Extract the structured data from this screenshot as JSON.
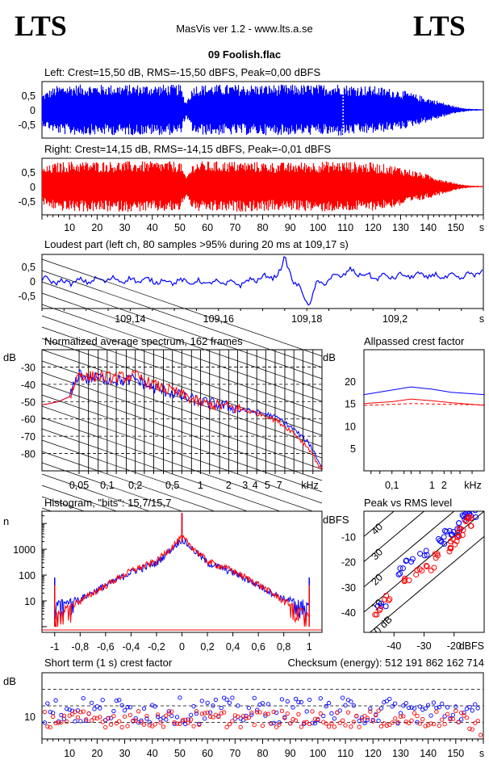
{
  "header": {
    "logo_left": "LTS",
    "logo_right": "LTS",
    "app_title": "MasVis ver 1.2 - www.lts.a.se",
    "file_title": "09 Foolish.flac"
  },
  "colors": {
    "left": "#0000ff",
    "right": "#ff0000"
  },
  "chart_data": [
    {
      "id": "left-waveform",
      "type": "area",
      "title": "Left: Crest=15,50 dB, RMS=-15,50 dBFS, Peak=0,00 dBFS",
      "yticks": [
        "0,5",
        "0",
        "-0,5"
      ],
      "ylim": [
        -1,
        1
      ],
      "xlim": [
        0,
        160
      ],
      "envelope_x": [
        0,
        5,
        10,
        20,
        30,
        40,
        50,
        52,
        55,
        70,
        90,
        100,
        109,
        110,
        120,
        130,
        140,
        150,
        155,
        160
      ],
      "envelope_y": [
        0.6,
        0.9,
        0.95,
        0.95,
        0.95,
        0.95,
        0.95,
        0.3,
        0.95,
        0.95,
        0.95,
        0.95,
        1.0,
        0.95,
        0.9,
        0.75,
        0.45,
        0.12,
        0.04,
        0.02
      ]
    },
    {
      "id": "right-waveform",
      "type": "area",
      "title": "Right: Crest=14,15 dB, RMS=-14,15 dBFS, Peak=-0,01 dBFS",
      "yticks": [
        "0,5",
        "0",
        "-0,5"
      ],
      "ylim": [
        -1,
        1
      ],
      "xlim": [
        0,
        160
      ],
      "xticks": [
        "10",
        "20",
        "30",
        "40",
        "50",
        "60",
        "70",
        "80",
        "90",
        "100",
        "110",
        "120",
        "130",
        "140",
        "150",
        "s"
      ],
      "envelope_x": [
        0,
        5,
        10,
        20,
        30,
        40,
        50,
        52,
        55,
        70,
        90,
        100,
        110,
        120,
        130,
        140,
        150,
        155,
        160
      ],
      "envelope_y": [
        0.7,
        0.9,
        0.95,
        0.95,
        0.95,
        0.95,
        0.95,
        0.35,
        0.95,
        0.95,
        0.9,
        0.95,
        0.95,
        0.9,
        0.75,
        0.45,
        0.12,
        0.04,
        0.02
      ]
    },
    {
      "id": "loudest-part",
      "type": "line",
      "title": "Loudest part (left  ch, 80 samples >95% during 20 ms at 109,17 s)",
      "yticks": [
        "0,5",
        "0",
        "-0,5"
      ],
      "ylim": [
        -1,
        1
      ],
      "xticks": [
        "109,14",
        "109,16",
        "109,18",
        "109,2",
        "s"
      ],
      "xlim": [
        109.12,
        109.22
      ]
    },
    {
      "id": "spectrum",
      "type": "line",
      "title": "Normalized average spectrum, 162 frames",
      "ylabel": "dB",
      "yticks": [
        "-30",
        "-40",
        "-50",
        "-60",
        "-70",
        "-80"
      ],
      "ylim": [
        -90,
        -20
      ],
      "xticks": [
        "0,05",
        "0,1",
        "0,2",
        "0,5",
        "1",
        "2",
        "3",
        "4",
        "5",
        "7",
        "kHz"
      ],
      "freq_khz": [
        0.02,
        0.03,
        0.04,
        0.05,
        0.06,
        0.08,
        0.1,
        0.15,
        0.2,
        0.3,
        0.5,
        0.7,
        1,
        2,
        3,
        5,
        7,
        10,
        15,
        20
      ],
      "series": [
        {
          "values": [
            -52,
            -50,
            -47,
            -33,
            -37,
            -36,
            -37,
            -38,
            -37,
            -42,
            -45,
            -48,
            -50,
            -53,
            -55,
            -57,
            -60,
            -66,
            -75,
            -88
          ]
        },
        {
          "values": [
            -52,
            -50,
            -47,
            -33,
            -36,
            -35,
            -36,
            -36,
            -35,
            -40,
            -44,
            -47,
            -51,
            -53,
            -55,
            -58,
            -62,
            -68,
            -78,
            -90
          ]
        }
      ]
    },
    {
      "id": "allpassed-crest",
      "type": "line",
      "title": "Allpassed crest factor",
      "ylabel": "dB",
      "yticks": [
        "20",
        "15",
        "10",
        "5"
      ],
      "ylim": [
        0,
        27
      ],
      "xticks": [
        "0,1",
        "1",
        "2",
        "kHz"
      ],
      "freq_khz": [
        0.02,
        0.1,
        0.3,
        1,
        3,
        20
      ],
      "series": [
        {
          "values": [
            17,
            18,
            18.7,
            18.2,
            17.5,
            17
          ]
        },
        {
          "values": [
            15,
            15.4,
            16,
            15.6,
            15.2,
            14.6
          ]
        },
        {
          "values": [
            14.6,
            14.8,
            15,
            14.9,
            14.8,
            14.7
          ]
        }
      ]
    },
    {
      "id": "histogram",
      "type": "line",
      "title": "Histogram, \"bits\": 15,7/15,7",
      "ylabel": "n",
      "yticks": [
        "1000",
        "100",
        "10"
      ],
      "xticks": [
        "-1",
        "-0,8",
        "-0,6",
        "-0,4",
        "-0,2",
        "0",
        "0,2",
        "0,4",
        "0,6",
        "0,8",
        "1"
      ],
      "xlim": [
        -1.1,
        1.1
      ],
      "x": [
        -1.0,
        -0.8,
        -0.6,
        -0.4,
        -0.2,
        0.0,
        0.2,
        0.4,
        0.6,
        0.8,
        1.0
      ],
      "series": [
        {
          "values": [
            8,
            12,
            40,
            130,
            300,
            2500,
            300,
            130,
            40,
            12,
            8
          ]
        },
        {
          "values": [
            3,
            10,
            40,
            150,
            350,
            3000,
            350,
            150,
            45,
            10,
            3
          ]
        }
      ]
    },
    {
      "id": "peak-vs-rms",
      "type": "scatter",
      "title": "Peak vs RMS level",
      "ylabel": "dBFS",
      "xlabel": "dBFS",
      "yticks": [
        "-10",
        "-20",
        "-30",
        "-40"
      ],
      "ylim": [
        -48,
        0
      ],
      "xticks": [
        "-40",
        "-30",
        "-20"
      ],
      "xlim": [
        -50,
        -10
      ],
      "diagonal_labels": [
        "40",
        "30",
        "20",
        "10",
        "0 dB"
      ],
      "series": [
        {
          "points": [
            [
              -44,
              -38
            ],
            [
              -38,
              -24
            ],
            [
              -35,
              -20
            ],
            [
              -30,
              -17
            ],
            [
              -24,
              -12
            ],
            [
              -22,
              -9
            ],
            [
              -20,
              -8
            ],
            [
              -18,
              -6
            ],
            [
              -16,
              -3
            ],
            [
              -15,
              -1
            ],
            [
              -14,
              -1
            ]
          ]
        },
        {
          "points": [
            [
              -46,
              -40
            ],
            [
              -42,
              -34
            ],
            [
              -36,
              -27
            ],
            [
              -32,
              -24
            ],
            [
              -28,
              -22
            ],
            [
              -25,
              -18
            ],
            [
              -22,
              -15
            ],
            [
              -20,
              -12
            ],
            [
              -18,
              -10
            ],
            [
              -17,
              -8
            ],
            [
              -15,
              -5
            ],
            [
              -14,
              -2
            ]
          ]
        }
      ]
    },
    {
      "id": "short-term-crest",
      "type": "scatter",
      "title": "Short term (1 s) crest factor",
      "checksum": "Checksum (energy):   512 191 862 162 714",
      "ylabel": "dB",
      "yticks": [
        "10"
      ],
      "ylim": [
        5,
        25
      ],
      "xlim": [
        0,
        160
      ],
      "xticks": [
        "10",
        "20",
        "30",
        "40",
        "50",
        "60",
        "70",
        "80",
        "90",
        "100",
        "110",
        "120",
        "130",
        "140",
        "150",
        "s"
      ],
      "series": [
        {
          "mean": 13.5,
          "spread": 4
        },
        {
          "mean": 11,
          "spread": 2.5
        }
      ]
    }
  ]
}
